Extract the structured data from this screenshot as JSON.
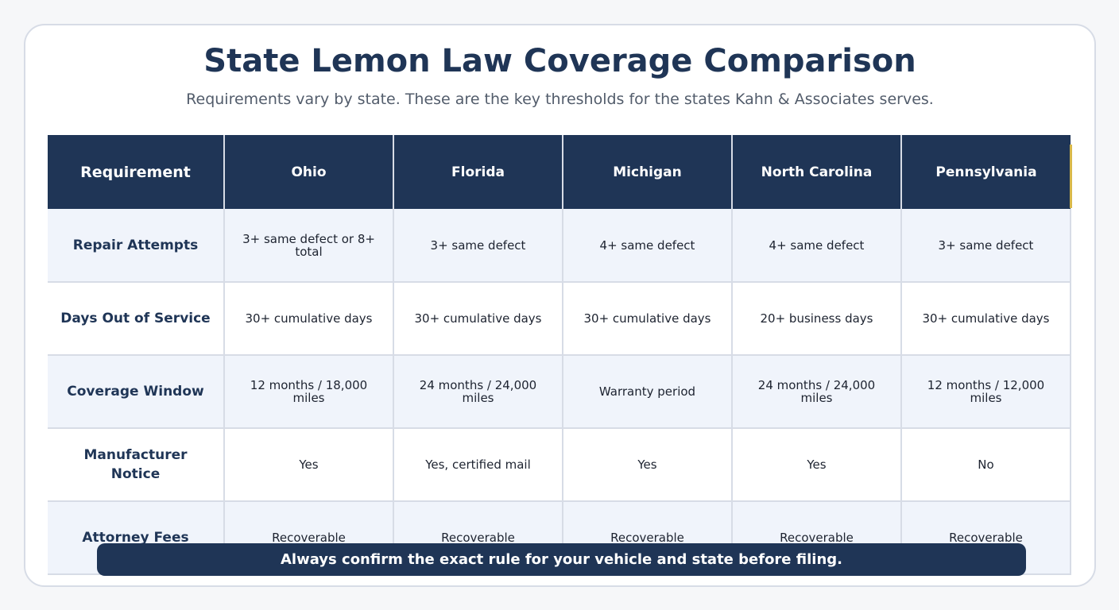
{
  "header": {
    "title": "State Lemon Law Coverage Comparison",
    "subtitle": "Requirements vary by state. These are the key thresholds for the states Kahn & Associates serves."
  },
  "table": {
    "columns": [
      "Requirement",
      "Ohio",
      "Florida",
      "Michigan",
      "North Carolina",
      "Pennsylvania"
    ],
    "rows": [
      {
        "requirement": "Repair Attempts",
        "cells": [
          "3+ same defect or 8+ total",
          "3+ same defect",
          "4+ same defect",
          "4+ same defect",
          "3+ same defect"
        ]
      },
      {
        "requirement": "Days Out of Service",
        "cells": [
          "30+ cumulative days",
          "30+ cumulative days",
          "30+ cumulative days",
          "20+ business days",
          "30+ cumulative days"
        ]
      },
      {
        "requirement": "Coverage Window",
        "cells": [
          "12 months / 18,000 miles",
          "24 months / 24,000 miles",
          "Warranty period",
          "24 months / 24,000 miles",
          "12 months / 12,000 miles"
        ]
      },
      {
        "requirement": "Manufacturer Notice",
        "cells": [
          "Yes",
          "Yes, certified mail",
          "Yes",
          "Yes",
          "No"
        ]
      },
      {
        "requirement": "Attorney Fees",
        "cells": [
          "Recoverable",
          "Recoverable",
          "Recoverable",
          "Recoverable",
          "Recoverable"
        ]
      }
    ]
  },
  "footer": {
    "note": "Always confirm the exact rule for your vehicle and state before filing."
  },
  "colors": {
    "navy": "#1f3556",
    "row_alt": "#f0f4fb",
    "accent": "#d8b84a"
  }
}
